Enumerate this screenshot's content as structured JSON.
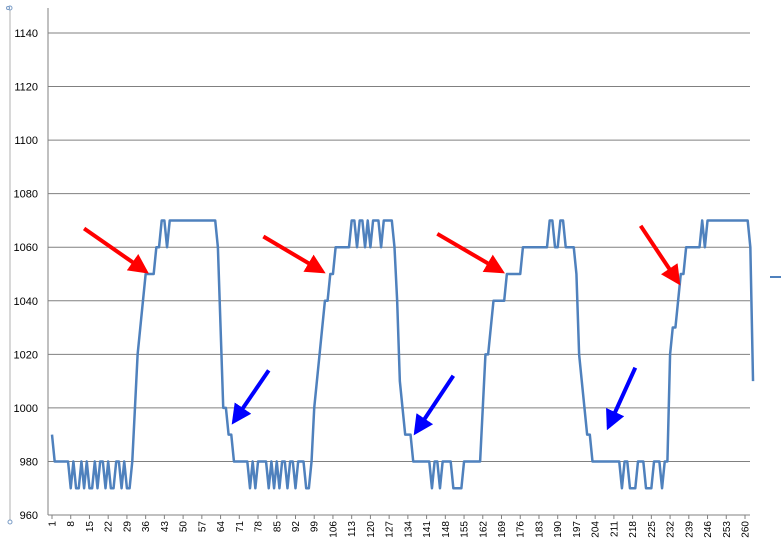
{
  "chart_data": {
    "type": "line",
    "title": "",
    "xlabel": "",
    "ylabel": "",
    "ylim": [
      960,
      1150
    ],
    "yticks": [
      960,
      980,
      1000,
      1020,
      1040,
      1060,
      1080,
      1100,
      1120,
      1140
    ],
    "xlim": [
      1,
      262
    ],
    "xticks": [
      1,
      8,
      15,
      22,
      29,
      36,
      43,
      50,
      57,
      64,
      71,
      78,
      85,
      92,
      99,
      106,
      113,
      120,
      127,
      134,
      141,
      148,
      155,
      162,
      169,
      176,
      183,
      190,
      197,
      204,
      211,
      218,
      225,
      232,
      239,
      246,
      253,
      260
    ],
    "grid": true,
    "legend": "none",
    "colors": {
      "line": "#4f81bd",
      "grid": "#808080",
      "red_arrow": "#ff0000",
      "blue_arrow": "#0000ff"
    },
    "series": [
      {
        "points": [
          [
            1,
            990
          ],
          [
            2,
            980
          ],
          [
            3,
            980
          ],
          [
            4,
            980
          ],
          [
            5,
            980
          ],
          [
            6,
            980
          ],
          [
            7,
            980
          ],
          [
            8,
            970
          ],
          [
            9,
            980
          ],
          [
            10,
            970
          ],
          [
            11,
            970
          ],
          [
            12,
            980
          ],
          [
            13,
            970
          ],
          [
            14,
            980
          ],
          [
            15,
            970
          ],
          [
            16,
            970
          ],
          [
            17,
            980
          ],
          [
            18,
            970
          ],
          [
            19,
            980
          ],
          [
            20,
            980
          ],
          [
            21,
            970
          ],
          [
            22,
            980
          ],
          [
            23,
            970
          ],
          [
            24,
            970
          ],
          [
            25,
            980
          ],
          [
            26,
            980
          ],
          [
            27,
            970
          ],
          [
            28,
            980
          ],
          [
            29,
            970
          ],
          [
            30,
            970
          ],
          [
            31,
            980
          ],
          [
            32,
            1000
          ],
          [
            33,
            1020
          ],
          [
            34,
            1030
          ],
          [
            35,
            1040
          ],
          [
            36,
            1050
          ],
          [
            37,
            1050
          ],
          [
            38,
            1050
          ],
          [
            39,
            1050
          ],
          [
            40,
            1060
          ],
          [
            41,
            1060
          ],
          [
            42,
            1070
          ],
          [
            43,
            1070
          ],
          [
            44,
            1060
          ],
          [
            45,
            1070
          ],
          [
            46,
            1070
          ],
          [
            47,
            1070
          ],
          [
            48,
            1070
          ],
          [
            49,
            1070
          ],
          [
            50,
            1070
          ],
          [
            51,
            1070
          ],
          [
            52,
            1070
          ],
          [
            53,
            1070
          ],
          [
            54,
            1070
          ],
          [
            55,
            1070
          ],
          [
            56,
            1070
          ],
          [
            57,
            1070
          ],
          [
            58,
            1070
          ],
          [
            59,
            1070
          ],
          [
            60,
            1070
          ],
          [
            61,
            1070
          ],
          [
            62,
            1070
          ],
          [
            63,
            1060
          ],
          [
            64,
            1030
          ],
          [
            65,
            1000
          ],
          [
            66,
            1000
          ],
          [
            67,
            990
          ],
          [
            68,
            990
          ],
          [
            69,
            980
          ],
          [
            70,
            980
          ],
          [
            71,
            980
          ],
          [
            72,
            980
          ],
          [
            73,
            980
          ],
          [
            74,
            980
          ],
          [
            75,
            970
          ],
          [
            76,
            980
          ],
          [
            77,
            970
          ],
          [
            78,
            980
          ],
          [
            79,
            980
          ],
          [
            80,
            980
          ],
          [
            81,
            980
          ],
          [
            82,
            970
          ],
          [
            83,
            980
          ],
          [
            84,
            970
          ],
          [
            85,
            980
          ],
          [
            86,
            970
          ],
          [
            87,
            980
          ],
          [
            88,
            980
          ],
          [
            89,
            970
          ],
          [
            90,
            980
          ],
          [
            91,
            980
          ],
          [
            92,
            970
          ],
          [
            93,
            980
          ],
          [
            94,
            980
          ],
          [
            95,
            980
          ],
          [
            96,
            970
          ],
          [
            97,
            970
          ],
          [
            98,
            980
          ],
          [
            99,
            1000
          ],
          [
            100,
            1010
          ],
          [
            101,
            1020
          ],
          [
            102,
            1030
          ],
          [
            103,
            1040
          ],
          [
            104,
            1040
          ],
          [
            105,
            1050
          ],
          [
            106,
            1050
          ],
          [
            107,
            1060
          ],
          [
            108,
            1060
          ],
          [
            109,
            1060
          ],
          [
            110,
            1060
          ],
          [
            111,
            1060
          ],
          [
            112,
            1060
          ],
          [
            113,
            1070
          ],
          [
            114,
            1070
          ],
          [
            115,
            1060
          ],
          [
            116,
            1070
          ],
          [
            117,
            1070
          ],
          [
            118,
            1060
          ],
          [
            119,
            1070
          ],
          [
            120,
            1060
          ],
          [
            121,
            1070
          ],
          [
            122,
            1070
          ],
          [
            123,
            1070
          ],
          [
            124,
            1060
          ],
          [
            125,
            1070
          ],
          [
            126,
            1070
          ],
          [
            127,
            1070
          ],
          [
            128,
            1070
          ],
          [
            129,
            1060
          ],
          [
            130,
            1040
          ],
          [
            131,
            1010
          ],
          [
            132,
            1000
          ],
          [
            133,
            990
          ],
          [
            134,
            990
          ],
          [
            135,
            990
          ],
          [
            136,
            980
          ],
          [
            137,
            980
          ],
          [
            138,
            980
          ],
          [
            139,
            980
          ],
          [
            140,
            980
          ],
          [
            141,
            980
          ],
          [
            142,
            980
          ],
          [
            143,
            970
          ],
          [
            144,
            980
          ],
          [
            145,
            980
          ],
          [
            146,
            970
          ],
          [
            147,
            980
          ],
          [
            148,
            980
          ],
          [
            149,
            980
          ],
          [
            150,
            980
          ],
          [
            151,
            970
          ],
          [
            152,
            970
          ],
          [
            153,
            970
          ],
          [
            154,
            970
          ],
          [
            155,
            980
          ],
          [
            156,
            980
          ],
          [
            157,
            980
          ],
          [
            158,
            980
          ],
          [
            159,
            980
          ],
          [
            160,
            980
          ],
          [
            161,
            980
          ],
          [
            162,
            1000
          ],
          [
            163,
            1020
          ],
          [
            164,
            1020
          ],
          [
            165,
            1030
          ],
          [
            166,
            1040
          ],
          [
            167,
            1040
          ],
          [
            168,
            1040
          ],
          [
            169,
            1040
          ],
          [
            170,
            1040
          ],
          [
            171,
            1050
          ],
          [
            172,
            1050
          ],
          [
            173,
            1050
          ],
          [
            174,
            1050
          ],
          [
            175,
            1050
          ],
          [
            176,
            1050
          ],
          [
            177,
            1060
          ],
          [
            178,
            1060
          ],
          [
            179,
            1060
          ],
          [
            180,
            1060
          ],
          [
            181,
            1060
          ],
          [
            182,
            1060
          ],
          [
            183,
            1060
          ],
          [
            184,
            1060
          ],
          [
            185,
            1060
          ],
          [
            186,
            1060
          ],
          [
            187,
            1070
          ],
          [
            188,
            1070
          ],
          [
            189,
            1060
          ],
          [
            190,
            1060
          ],
          [
            191,
            1070
          ],
          [
            192,
            1070
          ],
          [
            193,
            1060
          ],
          [
            194,
            1060
          ],
          [
            195,
            1060
          ],
          [
            196,
            1060
          ],
          [
            197,
            1050
          ],
          [
            198,
            1020
          ],
          [
            199,
            1010
          ],
          [
            200,
            1000
          ],
          [
            201,
            990
          ],
          [
            202,
            990
          ],
          [
            203,
            980
          ],
          [
            204,
            980
          ],
          [
            205,
            980
          ],
          [
            206,
            980
          ],
          [
            207,
            980
          ],
          [
            208,
            980
          ],
          [
            209,
            980
          ],
          [
            210,
            980
          ],
          [
            211,
            980
          ],
          [
            212,
            980
          ],
          [
            213,
            980
          ],
          [
            214,
            970
          ],
          [
            215,
            980
          ],
          [
            216,
            980
          ],
          [
            217,
            970
          ],
          [
            218,
            970
          ],
          [
            219,
            970
          ],
          [
            220,
            980
          ],
          [
            221,
            980
          ],
          [
            222,
            980
          ],
          [
            223,
            970
          ],
          [
            224,
            970
          ],
          [
            225,
            970
          ],
          [
            226,
            980
          ],
          [
            227,
            980
          ],
          [
            228,
            980
          ],
          [
            229,
            970
          ],
          [
            230,
            980
          ],
          [
            231,
            980
          ],
          [
            232,
            1020
          ],
          [
            233,
            1030
          ],
          [
            234,
            1030
          ],
          [
            235,
            1040
          ],
          [
            236,
            1050
          ],
          [
            237,
            1050
          ],
          [
            238,
            1060
          ],
          [
            239,
            1060
          ],
          [
            240,
            1060
          ],
          [
            241,
            1060
          ],
          [
            242,
            1060
          ],
          [
            243,
            1060
          ],
          [
            244,
            1070
          ],
          [
            245,
            1060
          ],
          [
            246,
            1070
          ],
          [
            247,
            1070
          ],
          [
            248,
            1070
          ],
          [
            249,
            1070
          ],
          [
            250,
            1070
          ],
          [
            251,
            1070
          ],
          [
            252,
            1070
          ],
          [
            253,
            1070
          ],
          [
            254,
            1070
          ],
          [
            255,
            1070
          ],
          [
            256,
            1070
          ],
          [
            257,
            1070
          ],
          [
            258,
            1070
          ],
          [
            259,
            1070
          ],
          [
            260,
            1070
          ],
          [
            261,
            1070
          ],
          [
            262,
            1060
          ],
          [
            263,
            1010
          ]
        ]
      }
    ],
    "annotations": [
      {
        "type": "arrow",
        "color": "red",
        "from": [
          13,
          1067
        ],
        "to": [
          36,
          1051
        ]
      },
      {
        "type": "arrow",
        "color": "red",
        "from": [
          80,
          1064
        ],
        "to": [
          102,
          1051
        ]
      },
      {
        "type": "arrow",
        "color": "red",
        "from": [
          145,
          1065
        ],
        "to": [
          169,
          1051
        ]
      },
      {
        "type": "arrow",
        "color": "red",
        "from": [
          221,
          1068
        ],
        "to": [
          235,
          1047
        ]
      },
      {
        "type": "arrow",
        "color": "blue",
        "from": [
          82,
          1014
        ],
        "to": [
          69,
          995
        ]
      },
      {
        "type": "arrow",
        "color": "blue",
        "from": [
          151,
          1012
        ],
        "to": [
          137,
          991
        ]
      },
      {
        "type": "arrow",
        "color": "blue",
        "from": [
          219,
          1015
        ],
        "to": [
          209,
          993
        ]
      }
    ]
  }
}
